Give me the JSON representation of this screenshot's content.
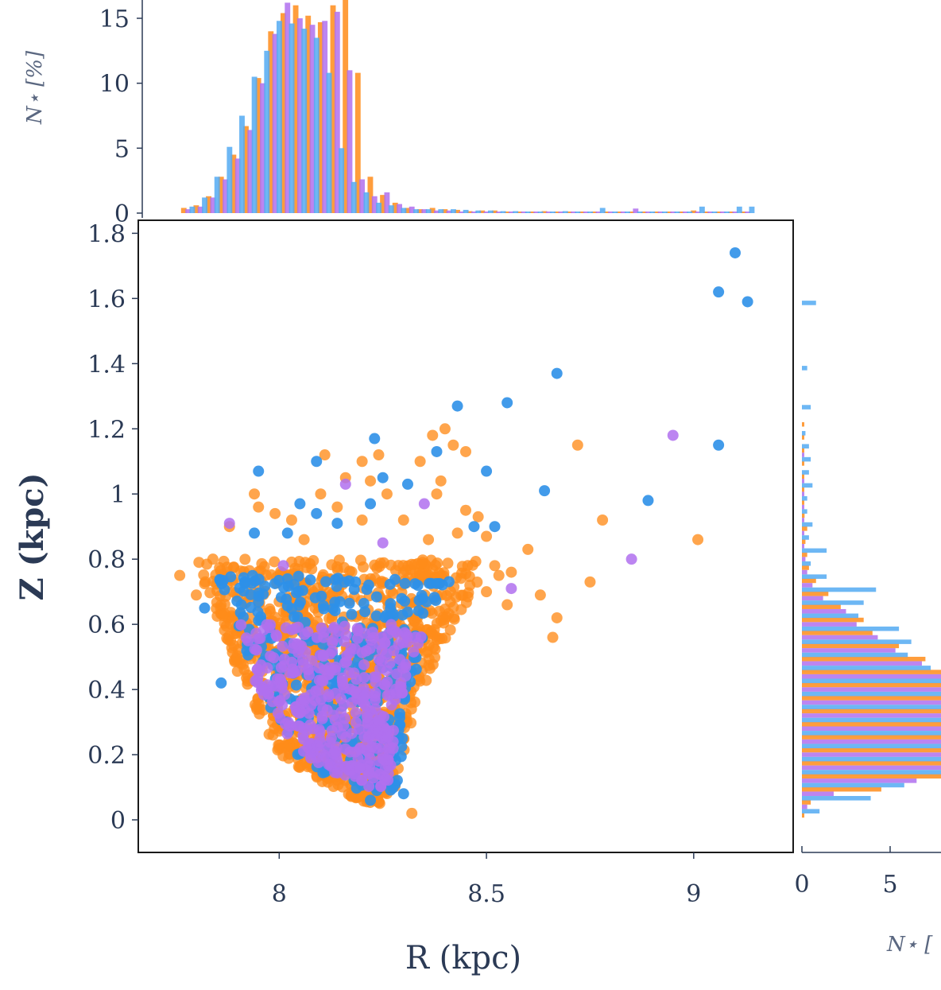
{
  "colors": {
    "orange": "#ff8c1a",
    "blue": "#2e90e8",
    "violet": "#b070ee",
    "axis": "#2b3a55",
    "hist_blue": "#54aaf2"
  },
  "chart_data": [
    {
      "type": "scatter",
      "xlabel": "R (kpc)",
      "ylabel": "Z (kpc)",
      "xlim": [
        7.66,
        9.24
      ],
      "ylim": [
        -0.1,
        1.84
      ],
      "xticks": [
        "8",
        "8.5",
        "9"
      ],
      "xtick_values": [
        8,
        8.5,
        9
      ],
      "yticks": [
        "0",
        "0.2",
        "0.4",
        "0.6",
        "0.8",
        "1",
        "1.2",
        "1.4",
        "1.6",
        "1.8"
      ],
      "ytick_values": [
        0,
        0.2,
        0.4,
        0.6,
        0.8,
        1.0,
        1.2,
        1.4,
        1.6,
        1.8
      ],
      "grid": false,
      "series": [
        {
          "name": "orange",
          "color": "#ff8c1a",
          "dense_region": {
            "x_left_edge": [
              [
                0.05,
                8.22
              ],
              [
                0.08,
                8.15
              ],
              [
                0.2,
                8.0
              ],
              [
                0.3,
                7.96
              ],
              [
                0.45,
                7.9
              ],
              [
                0.6,
                7.86
              ],
              [
                0.7,
                7.82
              ],
              [
                0.8,
                7.8
              ]
            ],
            "x_right_edge": [
              [
                0.05,
                8.27
              ],
              [
                0.2,
                8.3
              ],
              [
                0.35,
                8.33
              ],
              [
                0.5,
                8.38
              ],
              [
                0.6,
                8.42
              ],
              [
                0.7,
                8.47
              ],
              [
                0.8,
                8.5
              ]
            ],
            "count": 1100
          },
          "outliers": [
            [
              8.32,
              0.02
            ],
            [
              7.76,
              0.75
            ],
            [
              7.8,
              0.69
            ],
            [
              7.84,
              0.8
            ],
            [
              7.88,
              0.9
            ],
            [
              7.94,
              1.0
            ],
            [
              7.95,
              0.96
            ],
            [
              7.99,
              0.94
            ],
            [
              8.06,
              0.86
            ],
            [
              8.1,
              1.0
            ],
            [
              8.11,
              1.12
            ],
            [
              8.16,
              1.05
            ],
            [
              8.2,
              1.1
            ],
            [
              8.24,
              1.12
            ],
            [
              8.22,
              1.04
            ],
            [
              8.26,
              1.0
            ],
            [
              8.3,
              0.92
            ],
            [
              8.34,
              1.1
            ],
            [
              8.37,
              1.18
            ],
            [
              8.38,
              1.0
            ],
            [
              8.39,
              1.04
            ],
            [
              8.4,
              1.2
            ],
            [
              8.42,
              1.15
            ],
            [
              8.45,
              1.13
            ],
            [
              8.45,
              0.95
            ],
            [
              8.48,
              0.93
            ],
            [
              8.5,
              0.87
            ],
            [
              8.52,
              0.78
            ],
            [
              8.53,
              0.75
            ],
            [
              8.56,
              0.76
            ],
            [
              8.6,
              0.83
            ],
            [
              8.63,
              0.69
            ],
            [
              8.66,
              0.56
            ],
            [
              8.67,
              0.62
            ],
            [
              8.72,
              1.15
            ],
            [
              8.75,
              0.73
            ],
            [
              8.78,
              0.92
            ],
            [
              9.01,
              0.86
            ],
            [
              8.43,
              0.88
            ],
            [
              8.36,
              0.86
            ],
            [
              8.2,
              0.92
            ],
            [
              8.14,
              0.96
            ],
            [
              8.03,
              0.92
            ],
            [
              8.46,
              0.72
            ],
            [
              8.5,
              0.7
            ],
            [
              8.55,
              0.66
            ]
          ]
        },
        {
          "name": "blue",
          "color": "#2e90e8",
          "dense_region": {
            "x_left_edge": [
              [
                0.08,
                8.2
              ],
              [
                0.2,
                8.02
              ],
              [
                0.4,
                7.95
              ],
              [
                0.6,
                7.9
              ],
              [
                0.75,
                7.85
              ]
            ],
            "x_right_edge": [
              [
                0.08,
                8.3
              ],
              [
                0.3,
                8.3
              ],
              [
                0.5,
                8.34
              ],
              [
                0.7,
                8.4
              ],
              [
                0.8,
                8.45
              ]
            ],
            "count": 340
          },
          "outliers": [
            [
              9.1,
              1.74
            ],
            [
              9.06,
              1.62
            ],
            [
              9.13,
              1.59
            ],
            [
              8.67,
              1.37
            ],
            [
              8.43,
              1.27
            ],
            [
              8.55,
              1.28
            ],
            [
              8.23,
              1.17
            ],
            [
              8.38,
              1.13
            ],
            [
              8.5,
              1.07
            ],
            [
              8.64,
              1.01
            ],
            [
              8.89,
              0.98
            ],
            [
              9.06,
              1.15
            ],
            [
              7.95,
              1.07
            ],
            [
              8.09,
              1.1
            ],
            [
              8.25,
              1.05
            ],
            [
              8.31,
              1.03
            ],
            [
              8.22,
              0.97
            ],
            [
              8.47,
              0.9
            ],
            [
              8.52,
              0.9
            ],
            [
              8.05,
              0.97
            ],
            [
              8.09,
              0.94
            ],
            [
              8.14,
              0.91
            ],
            [
              8.02,
              0.88
            ],
            [
              7.94,
              0.88
            ],
            [
              7.82,
              0.65
            ],
            [
              8.3,
              0.08
            ],
            [
              8.22,
              0.06
            ],
            [
              7.86,
              0.42
            ]
          ]
        },
        {
          "name": "violet",
          "color": "#b070ee",
          "dense_region": {
            "x_left_edge": [
              [
                0.1,
                8.2
              ],
              [
                0.2,
                8.05
              ],
              [
                0.4,
                7.95
              ],
              [
                0.6,
                7.88
              ]
            ],
            "x_right_edge": [
              [
                0.1,
                8.27
              ],
              [
                0.3,
                8.28
              ],
              [
                0.5,
                8.32
              ],
              [
                0.65,
                8.38
              ]
            ],
            "count": 380
          },
          "outliers": [
            [
              8.95,
              1.18
            ],
            [
              8.85,
              0.8
            ],
            [
              8.56,
              0.71
            ],
            [
              8.35,
              0.97
            ],
            [
              8.16,
              1.03
            ],
            [
              8.25,
              0.85
            ],
            [
              7.88,
              0.91
            ],
            [
              8.01,
              0.78
            ]
          ]
        }
      ]
    },
    {
      "type": "bar",
      "orientation": "vertical",
      "title": "",
      "xlabel": "",
      "ylabel": "N⋆ [%]",
      "ylim": [
        0,
        15
      ],
      "yticks": [
        "0",
        "5",
        "10",
        "15"
      ],
      "ytick_values": [
        0,
        5,
        10,
        15
      ],
      "bin_centers_R": [
        7.78,
        7.81,
        7.84,
        7.87,
        7.9,
        7.93,
        7.96,
        7.99,
        8.02,
        8.05,
        8.08,
        8.11,
        8.14,
        8.17,
        8.2,
        8.23,
        8.26,
        8.29,
        8.32,
        8.35,
        8.38,
        8.41,
        8.44,
        8.47,
        8.5,
        8.53,
        8.56,
        8.59,
        8.62,
        8.65,
        8.68,
        8.71,
        8.74,
        8.77,
        8.8,
        8.83,
        8.86,
        8.89,
        8.92,
        8.95,
        8.98,
        9.01,
        9.04,
        9.07,
        9.1,
        9.13
      ],
      "series": [
        {
          "name": "orange",
          "color": "#ff8c1a",
          "values": [
            0.4,
            0.6,
            1.3,
            2.8,
            4.5,
            6.7,
            10.4,
            14,
            15.4,
            16,
            15.2,
            14.7,
            16,
            17.2,
            10.8,
            2.8,
            1.4,
            0.8,
            0.4,
            0.3,
            0.4,
            0.3,
            0.25,
            0.15,
            0.2,
            0.2,
            0.1,
            0.1,
            0.1,
            0.15,
            0.1,
            0.05,
            0.05,
            0.1,
            0.1,
            0.05,
            0.05,
            0.1,
            0.05,
            0.05,
            0.05,
            0.2,
            0.05,
            0.05,
            0.05,
            0.05
          ]
        },
        {
          "name": "violet",
          "color": "#b070ee",
          "values": [
            0.3,
            0.5,
            1.2,
            2.6,
            4.2,
            6.4,
            10.0,
            13.8,
            16.2,
            15.0,
            14.5,
            14.8,
            15.5,
            11.0,
            2.6,
            1.3,
            1.6,
            0.7,
            0.5,
            0.3,
            0.2,
            0.2,
            0.1,
            0.1,
            0.1,
            0.05,
            0.05,
            0.05,
            0.05,
            0.05,
            0.05,
            0.05,
            0.05,
            0.05,
            0.05,
            0.05,
            0.35,
            0.05,
            0.05,
            0.05,
            0.05,
            0.05,
            0.05,
            0.05,
            0.05,
            0.05
          ]
        },
        {
          "name": "blue",
          "color": "#54aaf2",
          "values": [
            0.5,
            1.2,
            2.8,
            5.1,
            7.5,
            10.5,
            12.5,
            14.8,
            14.6,
            14.2,
            13.5,
            10.8,
            5.0,
            2.4,
            1.6,
            0.8,
            0.6,
            0.4,
            0.3,
            0.3,
            0.3,
            0.3,
            0.25,
            0.2,
            0.2,
            0.15,
            0.15,
            0.1,
            0.1,
            0.1,
            0.15,
            0.1,
            0.1,
            0.4,
            0.05,
            0.05,
            0.1,
            0.05,
            0.05,
            0.05,
            0.05,
            0.5,
            0.05,
            0.05,
            0.5,
            0.5
          ]
        }
      ]
    },
    {
      "type": "bar",
      "orientation": "horizontal",
      "xlabel": "N⋆ [%]",
      "xlabel_visible": "N⋆ [",
      "xticks": [
        "0",
        "5"
      ],
      "xtick_values": [
        0,
        5
      ],
      "xlim_visible": [
        0,
        7.8
      ],
      "bin_centers_Z": [
        0.0,
        0.04,
        0.08,
        0.12,
        0.16,
        0.2,
        0.24,
        0.28,
        0.32,
        0.36,
        0.4,
        0.44,
        0.48,
        0.52,
        0.56,
        0.6,
        0.64,
        0.68,
        0.72,
        0.76,
        0.8,
        0.84,
        0.88,
        0.92,
        0.96,
        1.0,
        1.04,
        1.08,
        1.12,
        1.16,
        1.2,
        1.28,
        1.4,
        1.6
      ],
      "series": [
        {
          "name": "orange",
          "color": "#ff8c1a",
          "values": [
            0.1,
            0.5,
            4.5,
            8,
            9,
            10,
            9,
            9,
            9.5,
            9,
            10,
            8.5,
            7,
            5.5,
            4,
            3.5,
            2.2,
            1.5,
            0.8,
            0.4,
            0.3,
            0.2,
            0.3,
            0.15,
            0.1,
            0.05,
            0.1,
            0.05,
            0.05,
            0.05,
            0.05,
            0,
            0,
            0
          ]
        },
        {
          "name": "violet",
          "color": "#b070ee",
          "values": [
            0,
            0.3,
            1.8,
            6.5,
            8.5,
            9.5,
            9,
            9,
            9,
            9.5,
            9,
            8,
            6.8,
            5.3,
            4.3,
            3.1,
            2.5,
            1.2,
            0.6,
            0.3,
            0.2,
            0.1,
            0.1,
            0.1,
            0.05,
            0.05,
            0.05,
            0,
            0.05,
            0,
            0,
            0,
            0,
            0
          ]
        },
        {
          "name": "blue",
          "color": "#54aaf2",
          "values": [
            0,
            1,
            3.9,
            5.8,
            8,
            9,
            9.5,
            9.5,
            9.8,
            9,
            9.5,
            8.7,
            7.3,
            6,
            6.2,
            5.5,
            3.2,
            3.5,
            4.2,
            1.4,
            0.5,
            1.4,
            0.4,
            0.6,
            0.3,
            0.3,
            0.6,
            0.4,
            0.5,
            0.4,
            0.2,
            0.5,
            0.3,
            0.8
          ]
        }
      ]
    }
  ]
}
